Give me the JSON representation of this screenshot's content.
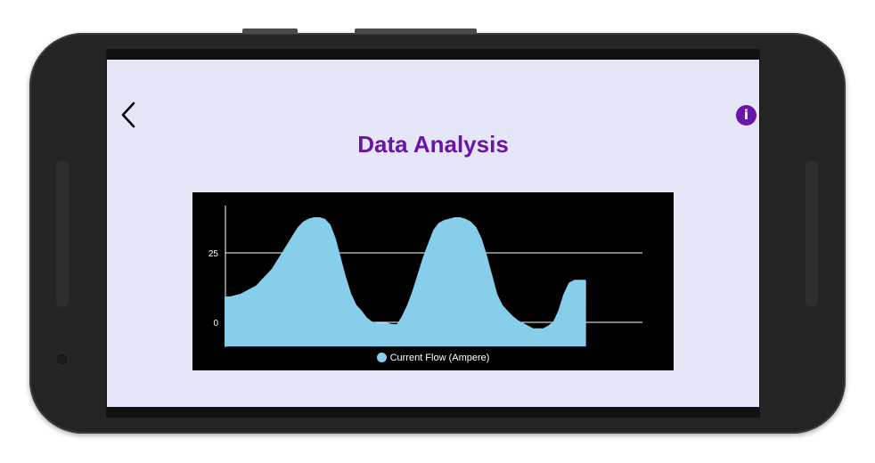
{
  "header": {
    "title": "Data Analysis",
    "back_icon": "chevron-left-icon",
    "info_icon": "info-icon",
    "info_glyph": "i"
  },
  "colors": {
    "background": "#e6e6f9",
    "accent": "#6a14a8",
    "chart_background": "#000000",
    "series": "#87ceeb"
  },
  "chart_data": {
    "type": "area",
    "x": [
      0,
      1,
      2,
      3,
      4,
      5,
      6,
      7,
      8,
      9,
      10,
      11,
      12,
      13,
      14,
      15,
      16,
      17,
      18,
      19,
      20,
      21,
      22,
      23,
      24,
      25,
      26,
      27,
      28,
      29,
      30,
      31,
      32,
      33,
      34,
      35,
      36,
      37,
      38,
      39,
      40,
      41,
      42,
      43,
      44,
      45,
      46,
      47,
      48,
      49,
      50,
      51,
      52,
      53,
      54,
      55,
      56,
      57,
      58,
      59,
      60,
      61,
      62,
      63,
      64,
      65,
      66,
      67,
      68,
      69,
      70,
      71,
      72,
      73,
      74,
      75,
      76,
      77,
      78,
      79,
      80
    ],
    "series": [
      {
        "name": "Current Flow (Ampere)",
        "values": [
          9,
          9,
          9.5,
          10,
          11,
          12,
          13,
          15,
          17,
          19,
          22,
          25,
          28,
          31,
          34,
          36,
          37,
          37.5,
          37.5,
          37,
          35,
          30,
          23,
          16,
          10,
          6,
          4,
          1.5,
          0,
          -0.5,
          -0.5,
          -0.5,
          -1,
          -1,
          2,
          6,
          11,
          17,
          23,
          28,
          33,
          35.5,
          36.5,
          37,
          37.5,
          37.5,
          37,
          36,
          34,
          30,
          24,
          17,
          10,
          6,
          4,
          2,
          0.5,
          -0.5,
          -1.5,
          -2.5,
          -2.5,
          -2.5,
          -1.5,
          0,
          4,
          10,
          14,
          15,
          15,
          15,
          null,
          null,
          null,
          null,
          null,
          null,
          null,
          null,
          null,
          null,
          null
        ]
      }
    ],
    "yticks": [
      0,
      25
    ],
    "ylim": [
      -9,
      42
    ],
    "xlim": [
      0,
      80
    ],
    "grid": "horizontal",
    "legend": "bottom-center",
    "title": "",
    "xlabel": "",
    "ylabel": ""
  }
}
